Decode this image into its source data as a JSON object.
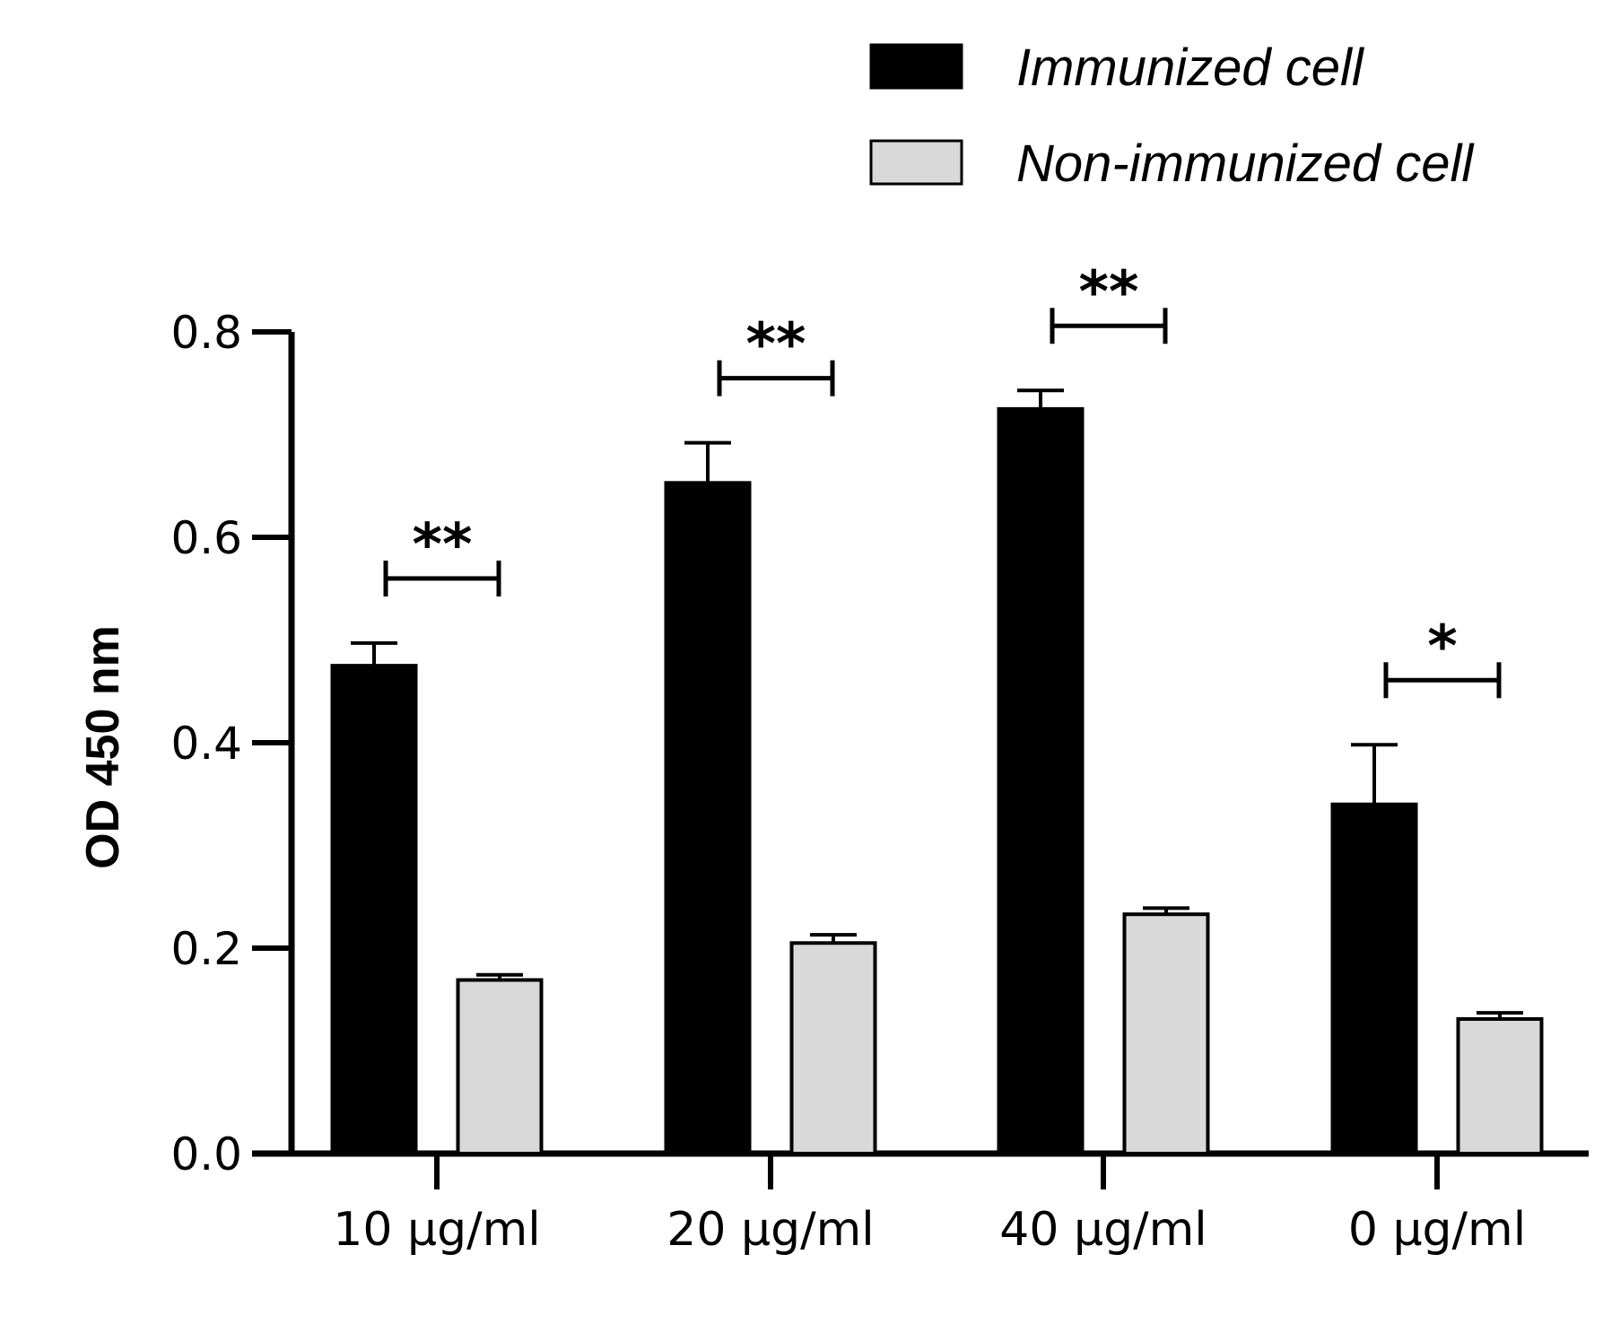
{
  "chart_data": {
    "type": "bar",
    "title": "",
    "xlabel": "",
    "ylabel": "OD 450 nm",
    "ylim": [
      0,
      0.8
    ],
    "yticks": [
      "0.0",
      "0.2",
      "0.4",
      "0.6",
      "0.8"
    ],
    "categories": [
      "10 μg/ml",
      "20 μg/ml",
      "40 μg/ml",
      "0 μg/ml"
    ],
    "series": [
      {
        "name": "Immunized cell",
        "color": "#000000",
        "values": [
          0.475,
          0.653,
          0.725,
          0.34
        ],
        "errors": [
          0.022,
          0.039,
          0.018,
          0.058
        ]
      },
      {
        "name": "Non-immunized cell",
        "color": "#d9d9d9",
        "values": [
          0.169,
          0.205,
          0.233,
          0.131
        ],
        "errors": [
          0.005,
          0.008,
          0.006,
          0.006
        ]
      }
    ],
    "significance": [
      "**",
      "**",
      "**",
      "*"
    ],
    "legend_position": "top-right",
    "grid": false
  }
}
